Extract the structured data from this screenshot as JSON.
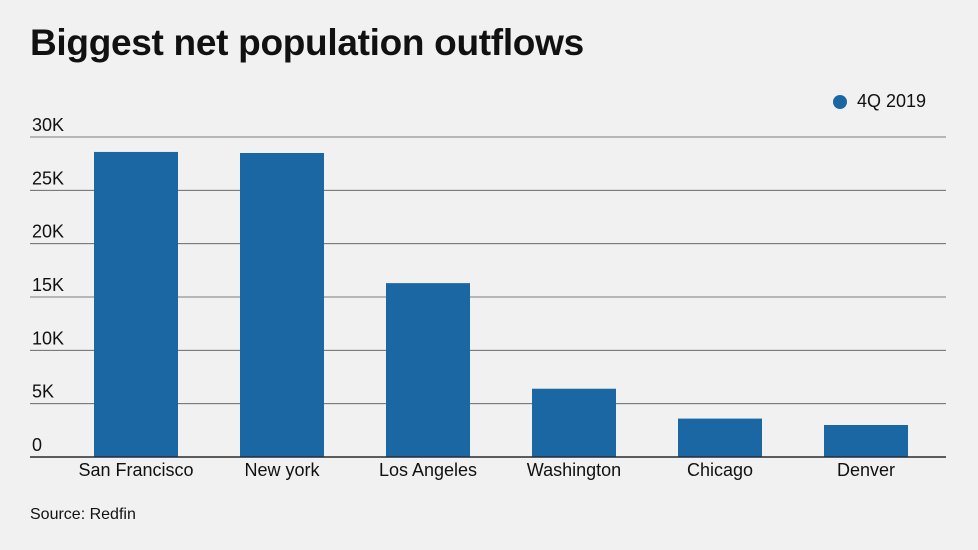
{
  "chart_data": {
    "type": "bar",
    "title": "Biggest net population outflows",
    "categories": [
      "San Francisco",
      "New york",
      "Los Angeles",
      "Washington",
      "Chicago",
      "Denver"
    ],
    "series": [
      {
        "name": "4Q 2019",
        "values": [
          28600,
          28500,
          16300,
          6400,
          3600,
          3000
        ]
      }
    ],
    "ylim": [
      0,
      30000
    ],
    "yticks": [
      0,
      5000,
      10000,
      15000,
      20000,
      25000,
      30000
    ],
    "ytick_labels": [
      "0",
      "5K",
      "10K",
      "15K",
      "20K",
      "25K",
      "30K"
    ],
    "xlabel": "",
    "ylabel": "",
    "grid": true,
    "legend_position": "top-right",
    "bar_color": "#1b67a3"
  },
  "source": "Source: Redfin"
}
